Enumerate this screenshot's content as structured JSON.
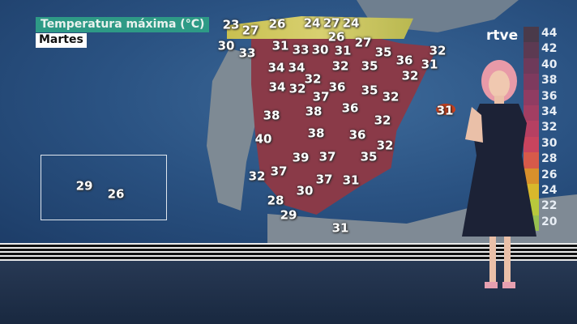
{
  "header": {
    "title": "Temperatura máxima (°C)",
    "day": "Martes"
  },
  "brand": "rtve",
  "temperatures": [
    23,
    27,
    26,
    24,
    27,
    24,
    26,
    30,
    33,
    31,
    33,
    30,
    31,
    27,
    35,
    32,
    34,
    34,
    32,
    35,
    36,
    31,
    32,
    32,
    34,
    32,
    36,
    37,
    35,
    32,
    38,
    38,
    36,
    32,
    31,
    40,
    38,
    36,
    32,
    39,
    37,
    35,
    32,
    37,
    37,
    31,
    30,
    28,
    29,
    31
  ],
  "canarias": [
    29,
    26
  ],
  "legend": {
    "labels": [
      "44",
      "42",
      "40",
      "38",
      "36",
      "34",
      "32",
      "30",
      "28",
      "26",
      "24",
      "22",
      "20"
    ],
    "colors": [
      "#4a3a4a",
      "#5c3a52",
      "#6e3a5a",
      "#7e3a5e",
      "#903c62",
      "#a23e62",
      "#b64062",
      "#c8445e",
      "#d65a4a",
      "#d8902c",
      "#d8b82c",
      "#b8c83c",
      "#98c050"
    ]
  }
}
